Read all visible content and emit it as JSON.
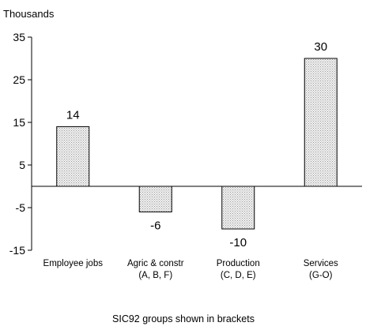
{
  "chart_data": {
    "type": "bar",
    "title": "",
    "unit_label": "Thousands",
    "categories": [
      [
        "Employee jobs"
      ],
      [
        "Agric & constr",
        "(A, B, F)"
      ],
      [
        "Production",
        "(C, D, E)"
      ],
      [
        "Services",
        "(G-O)"
      ]
    ],
    "values": [
      14,
      -6,
      -10,
      30
    ],
    "data_labels": [
      "14",
      "-6",
      "-10",
      "30"
    ],
    "yticks": [
      35,
      25,
      15,
      5,
      -5,
      -15
    ],
    "ylim": [
      -15,
      35
    ],
    "grid": false,
    "legend": "none",
    "footnote": "SIC92 groups shown in brackets",
    "colors": {
      "bar_fill": "#e6e6e6",
      "bar_stroke": "#000000",
      "axis": "#000000"
    }
  }
}
